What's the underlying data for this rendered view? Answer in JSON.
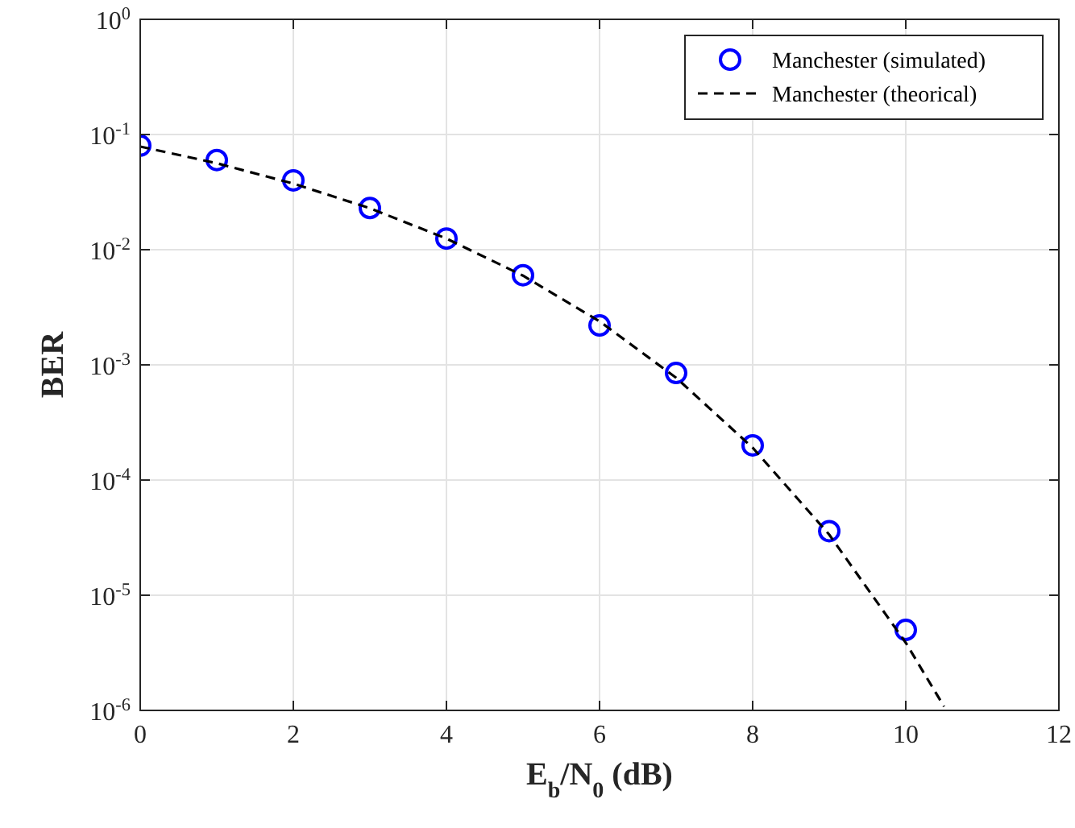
{
  "chart_data": {
    "type": "scatter",
    "xlabel": "E$_{b}$/N$_{0}$ (dB)",
    "ylabel": "BER",
    "log": "y",
    "grid": true,
    "legend": "top right",
    "xlim": [
      0,
      12
    ],
    "xticks": [
      0,
      2,
      4,
      6,
      8,
      10,
      12
    ],
    "ylim": [
      1e-06,
      1
    ],
    "yticks": [
      {
        "value": 1e-06,
        "label": "10$^{-6}$"
      },
      {
        "value": 1e-05,
        "label": "10$^{-5}$"
      },
      {
        "value": 0.0001,
        "label": "10$^{-4}$"
      },
      {
        "value": 0.001,
        "label": "10$^{-3}$"
      },
      {
        "value": 0.01,
        "label": "10$^{-2}$"
      },
      {
        "value": 0.1,
        "label": "10$^{-1}$"
      },
      {
        "value": 1,
        "label": "10$^{0}$"
      }
    ],
    "series": [
      {
        "name": "Manchester (simulated)",
        "type": "scatter",
        "marker": "circle",
        "color": "#0000ff",
        "x": [
          0,
          1,
          2,
          3,
          4,
          5,
          6,
          7,
          8,
          9,
          10
        ],
        "values": [
          0.08,
          0.06,
          0.04,
          0.023,
          0.0125,
          0.006,
          0.0022,
          0.00085,
          0.0002,
          3.6e-05,
          5e-06
        ]
      },
      {
        "name": "Manchester (theorical)",
        "type": "line",
        "line_style": "dashed",
        "marker": "none",
        "color": "#000000",
        "x": [
          0,
          1,
          2,
          3,
          4,
          5,
          6,
          7,
          8,
          9,
          10,
          10.5
        ],
        "values": [
          0.0786,
          0.0563,
          0.0375,
          0.0229,
          0.0125,
          0.00595,
          0.00239,
          0.000773,
          0.000191,
          3.36e-05,
          3.87e-06,
          1.08e-06
        ]
      }
    ]
  }
}
